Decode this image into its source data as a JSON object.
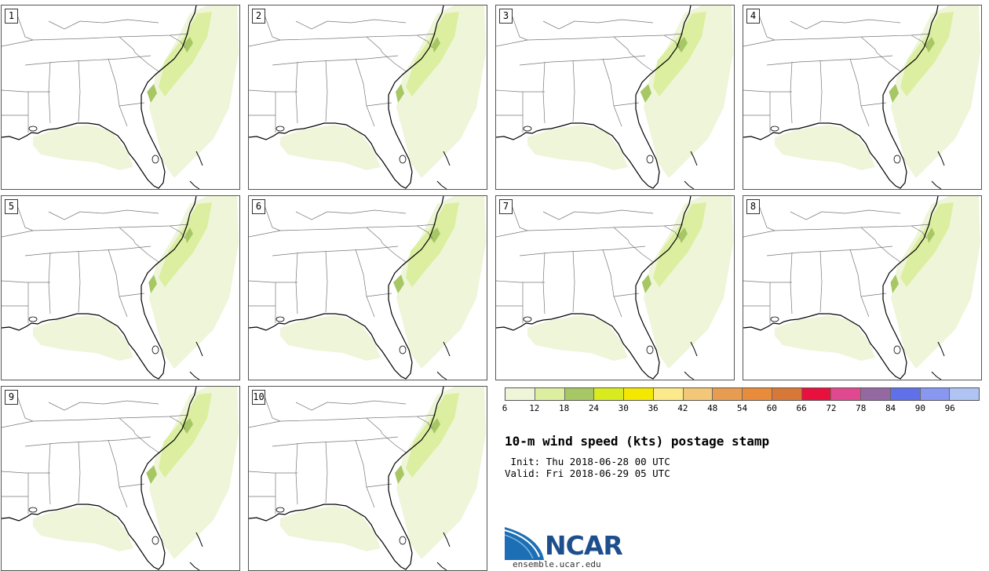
{
  "panels": [
    {
      "label": "1"
    },
    {
      "label": "2"
    },
    {
      "label": "3"
    },
    {
      "label": "4"
    },
    {
      "label": "5"
    },
    {
      "label": "6"
    },
    {
      "label": "7"
    },
    {
      "label": "8"
    },
    {
      "label": "9"
    },
    {
      "label": "10"
    }
  ],
  "colorbar": {
    "ticks": [
      "6",
      "12",
      "18",
      "24",
      "30",
      "36",
      "42",
      "48",
      "54",
      "60",
      "66",
      "72",
      "78",
      "84",
      "90",
      "96"
    ],
    "colors": [
      "#eef5d9",
      "#dcefa0",
      "#a6c764",
      "#d7eb1e",
      "#f5e800",
      "#fbe98a",
      "#f2c878",
      "#e89c50",
      "#e88c3c",
      "#d87838",
      "#e8103c",
      "#e04890",
      "#9468a0",
      "#6070e8",
      "#8898f0",
      "#b0c4f4"
    ]
  },
  "title": "10-m wind speed (kts) postage stamp",
  "init_line": " Init: Thu 2018-06-28 00 UTC",
  "valid_line": "Valid: Fri 2018-06-29 05 UTC",
  "logo": {
    "text": "NCAR",
    "website": "ensemble.ucar.edu"
  },
  "map_colors": {
    "light": "#eef5d9",
    "medium": "#dcefa0",
    "strong": "#a6c764"
  }
}
